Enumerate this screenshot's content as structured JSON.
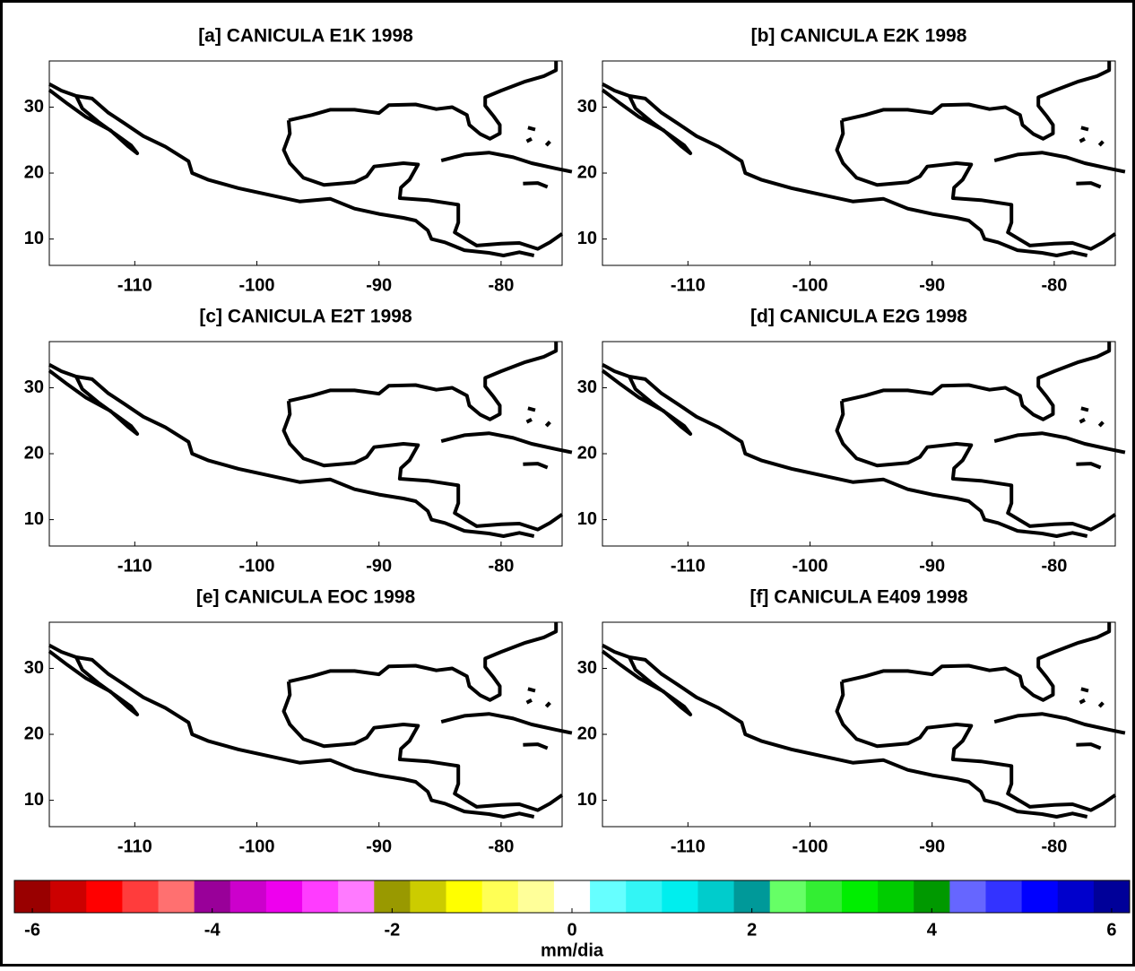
{
  "chart_data": [
    {
      "type": "map",
      "title": "[a] CANICULA E1K 1998",
      "xlim": [
        -117,
        -75
      ],
      "ylim": [
        6,
        37
      ],
      "xticks": [
        -110,
        -100,
        -90,
        -80
      ],
      "yticks": [
        10,
        20,
        30
      ]
    },
    {
      "type": "map",
      "title": "[b] CANICULA E2K 1998",
      "xlim": [
        -117,
        -75
      ],
      "ylim": [
        6,
        37
      ],
      "xticks": [
        -110,
        -100,
        -90,
        -80
      ],
      "yticks": [
        10,
        20,
        30
      ]
    },
    {
      "type": "map",
      "title": "[c] CANICULA E2T 1998",
      "xlim": [
        -117,
        -75
      ],
      "ylim": [
        6,
        37
      ],
      "xticks": [
        -110,
        -100,
        -90,
        -80
      ],
      "yticks": [
        10,
        20,
        30
      ]
    },
    {
      "type": "map",
      "title": "[d] CANICULA E2G 1998",
      "xlim": [
        -117,
        -75
      ],
      "ylim": [
        6,
        37
      ],
      "xticks": [
        -110,
        -100,
        -90,
        -80
      ],
      "yticks": [
        10,
        20,
        30
      ]
    },
    {
      "type": "map",
      "title": "[e] CANICULA EOC 1998",
      "xlim": [
        -117,
        -75
      ],
      "ylim": [
        6,
        37
      ],
      "xticks": [
        -110,
        -100,
        -90,
        -80
      ],
      "yticks": [
        10,
        20,
        30
      ]
    },
    {
      "type": "map",
      "title": "[f] CANICULA E409 1998",
      "xlim": [
        -117,
        -75
      ],
      "ylim": [
        6,
        37
      ],
      "xticks": [
        -110,
        -100,
        -90,
        -80
      ],
      "yticks": [
        10,
        20,
        30
      ]
    },
    {
      "type": "colorbar",
      "xlabel": "mm/dia",
      "xlim": [
        -6,
        6
      ],
      "xticks": [
        -6,
        -4,
        -2,
        0,
        2,
        4,
        6
      ],
      "colors": [
        "#990000",
        "#cc0000",
        "#ff0000",
        "#ff3c3c",
        "#ff7070",
        "#990099",
        "#cc00cc",
        "#ee00ee",
        "#ff3cff",
        "#ff7aff",
        "#999900",
        "#cccc00",
        "#ffff00",
        "#ffff55",
        "#ffff99",
        "#ffffff",
        "#66ffff",
        "#33f5f5",
        "#00eeee",
        "#00cccc",
        "#009999",
        "#66ff66",
        "#33ee33",
        "#00ee00",
        "#00cc00",
        "#009900",
        "#6666ff",
        "#3333ff",
        "#0000ff",
        "#0000cc",
        "#000099"
      ]
    }
  ]
}
